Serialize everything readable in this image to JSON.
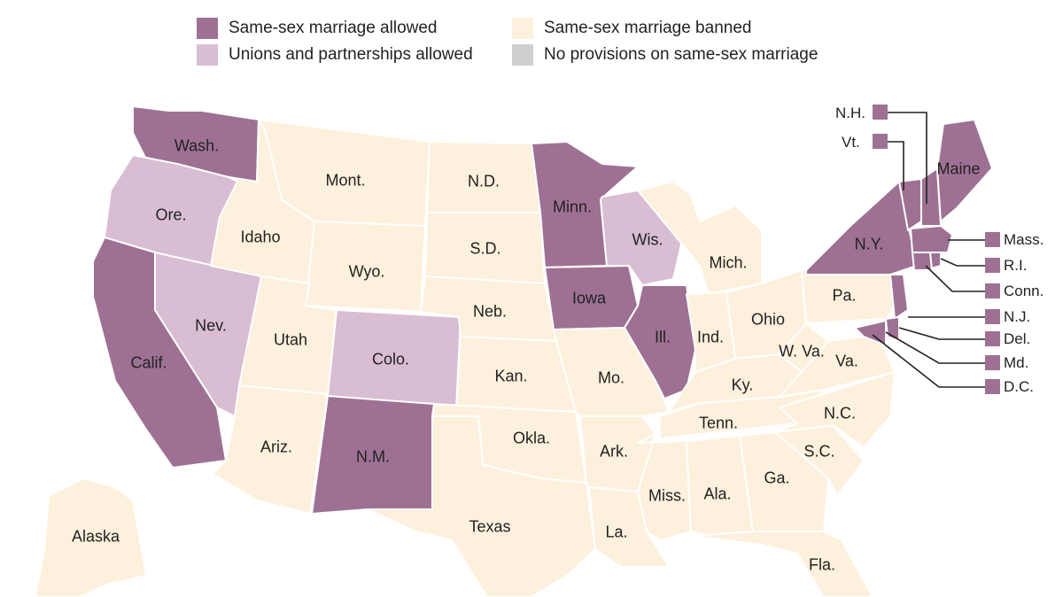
{
  "colors": {
    "allowed": "#9e7194",
    "unions": "#d9bdd2",
    "banned": "#fdf0dc",
    "none": "#cfcfcf",
    "border": "#ffffff",
    "line": "#222222"
  },
  "legend": [
    {
      "label": "Same-sex marriage allowed",
      "status": "allowed"
    },
    {
      "label": "Same-sex marriage banned",
      "status": "banned"
    },
    {
      "label": "Unions and partnerships allowed",
      "status": "unions"
    },
    {
      "label": "No provisions on same-sex marriage",
      "status": "none"
    }
  ],
  "states": [
    {
      "abbr": "Wash.",
      "status": "allowed"
    },
    {
      "abbr": "Ore.",
      "status": "unions"
    },
    {
      "abbr": "Calif.",
      "status": "allowed"
    },
    {
      "abbr": "Nev.",
      "status": "unions"
    },
    {
      "abbr": "Idaho",
      "status": "banned"
    },
    {
      "abbr": "Mont.",
      "status": "banned"
    },
    {
      "abbr": "Wyo.",
      "status": "banned"
    },
    {
      "abbr": "Utah",
      "status": "banned"
    },
    {
      "abbr": "Ariz.",
      "status": "banned"
    },
    {
      "abbr": "Colo.",
      "status": "unions"
    },
    {
      "abbr": "N.M.",
      "status": "allowed"
    },
    {
      "abbr": "N.D.",
      "status": "banned"
    },
    {
      "abbr": "S.D.",
      "status": "banned"
    },
    {
      "abbr": "Neb.",
      "status": "banned"
    },
    {
      "abbr": "Kan.",
      "status": "banned"
    },
    {
      "abbr": "Okla.",
      "status": "banned"
    },
    {
      "abbr": "Texas",
      "status": "banned"
    },
    {
      "abbr": "Minn.",
      "status": "allowed"
    },
    {
      "abbr": "Iowa",
      "status": "allowed"
    },
    {
      "abbr": "Mo.",
      "status": "banned"
    },
    {
      "abbr": "Ark.",
      "status": "banned"
    },
    {
      "abbr": "La.",
      "status": "banned"
    },
    {
      "abbr": "Wis.",
      "status": "unions"
    },
    {
      "abbr": "Ill.",
      "status": "allowed"
    },
    {
      "abbr": "Mich.",
      "status": "banned"
    },
    {
      "abbr": "Ind.",
      "status": "banned"
    },
    {
      "abbr": "Ohio",
      "status": "banned"
    },
    {
      "abbr": "Ky.",
      "status": "banned"
    },
    {
      "abbr": "Tenn.",
      "status": "banned"
    },
    {
      "abbr": "Miss.",
      "status": "banned"
    },
    {
      "abbr": "Ala.",
      "status": "banned"
    },
    {
      "abbr": "Ga.",
      "status": "banned"
    },
    {
      "abbr": "Fla.",
      "status": "banned"
    },
    {
      "abbr": "S.C.",
      "status": "banned"
    },
    {
      "abbr": "N.C.",
      "status": "banned"
    },
    {
      "abbr": "Va.",
      "status": "banned"
    },
    {
      "abbr": "W. Va.",
      "status": "banned"
    },
    {
      "abbr": "Pa.",
      "status": "banned"
    },
    {
      "abbr": "N.Y.",
      "status": "allowed"
    },
    {
      "abbr": "Maine",
      "status": "allowed"
    },
    {
      "abbr": "Alaska",
      "status": "banned"
    }
  ],
  "callouts": [
    {
      "abbr": "N.H.",
      "status": "allowed"
    },
    {
      "abbr": "Vt.",
      "status": "allowed"
    },
    {
      "abbr": "Mass.",
      "status": "allowed"
    },
    {
      "abbr": "R.I.",
      "status": "allowed"
    },
    {
      "abbr": "Conn.",
      "status": "allowed"
    },
    {
      "abbr": "N.J.",
      "status": "allowed"
    },
    {
      "abbr": "Del.",
      "status": "allowed"
    },
    {
      "abbr": "Md.",
      "status": "allowed"
    },
    {
      "abbr": "D.C.",
      "status": "allowed"
    }
  ]
}
